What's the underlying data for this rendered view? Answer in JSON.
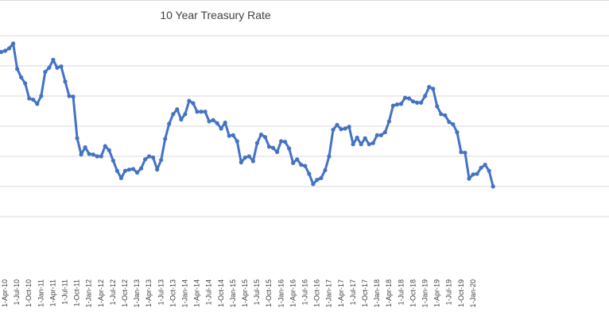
{
  "chart_data": {
    "type": "line",
    "title": "10 Year Treasury Rate",
    "xlabel": "",
    "ylabel": "",
    "ylim": [
      0,
      4
    ],
    "grid": true,
    "series_color": "#4472C4",
    "series": [
      {
        "name": "10 Year Treasury Rate",
        "values": [
          3.73,
          3.75,
          3.79,
          3.87,
          3.45,
          3.31,
          3.21,
          2.96,
          2.94,
          2.87,
          3.0,
          3.4,
          3.47,
          3.6,
          3.47,
          3.49,
          3.24,
          3.0,
          2.99,
          2.3,
          2.03,
          2.15,
          2.04,
          2.03,
          2.0,
          2.0,
          2.17,
          2.1,
          1.93,
          1.76,
          1.64,
          1.76,
          1.78,
          1.79,
          1.73,
          1.8,
          1.95,
          2.0,
          1.98,
          1.78,
          1.94,
          2.29,
          2.54,
          2.7,
          2.78,
          2.61,
          2.7,
          2.92,
          2.88,
          2.74,
          2.74,
          2.74,
          2.58,
          2.6,
          2.55,
          2.46,
          2.56,
          2.34,
          2.35,
          2.25,
          1.9,
          1.98,
          2.0,
          1.92,
          2.22,
          2.36,
          2.32,
          2.16,
          2.14,
          2.07,
          2.25,
          2.24,
          2.13,
          1.89,
          1.95,
          1.86,
          1.84,
          1.71,
          1.54,
          1.61,
          1.64,
          1.77,
          2.0,
          2.44,
          2.52,
          2.45,
          2.46,
          2.49,
          2.2,
          2.31,
          2.2,
          2.3,
          2.2,
          2.22,
          2.35,
          2.35,
          2.4,
          2.58,
          2.84,
          2.86,
          2.87,
          2.97,
          2.96,
          2.91,
          2.89,
          2.89,
          3.0,
          3.15,
          3.12,
          2.83,
          2.7,
          2.68,
          2.57,
          2.53,
          2.4,
          2.07,
          2.06,
          1.63,
          1.7,
          1.71,
          1.81,
          1.86,
          1.76,
          1.5
        ]
      }
    ],
    "x_tick_labels": [
      "1-Apr-10",
      "1-Jul-10",
      "1-Oct-10",
      "1-Jan-11",
      "1-Apr-11",
      "1-Jul-11",
      "1-Oct-11",
      "1-Jan-12",
      "1-Apr-12",
      "1-Jul-12",
      "1-Oct-12",
      "1-Jan-13",
      "1-Apr-13",
      "1-Jul-13",
      "1-Oct-13",
      "1-Jan-14",
      "1-Apr-14",
      "1-Jul-14",
      "1-Oct-14",
      "1-Jan-15",
      "1-Apr-15",
      "1-Jul-15",
      "1-Oct-15",
      "1-Jan-16",
      "1-Apr-16",
      "1-Jul-16",
      "1-Oct-16",
      "1-Jan-17",
      "1-Apr-17",
      "1-Jul-17",
      "1-Oct-17",
      "1-Jan-18",
      "1-Apr-18",
      "1-Jul-18",
      "1-Oct-18",
      "1-Jan-19",
      "1-Apr-19",
      "1-Jul-19",
      "1-Oct-19",
      "1-Jan-20"
    ]
  }
}
